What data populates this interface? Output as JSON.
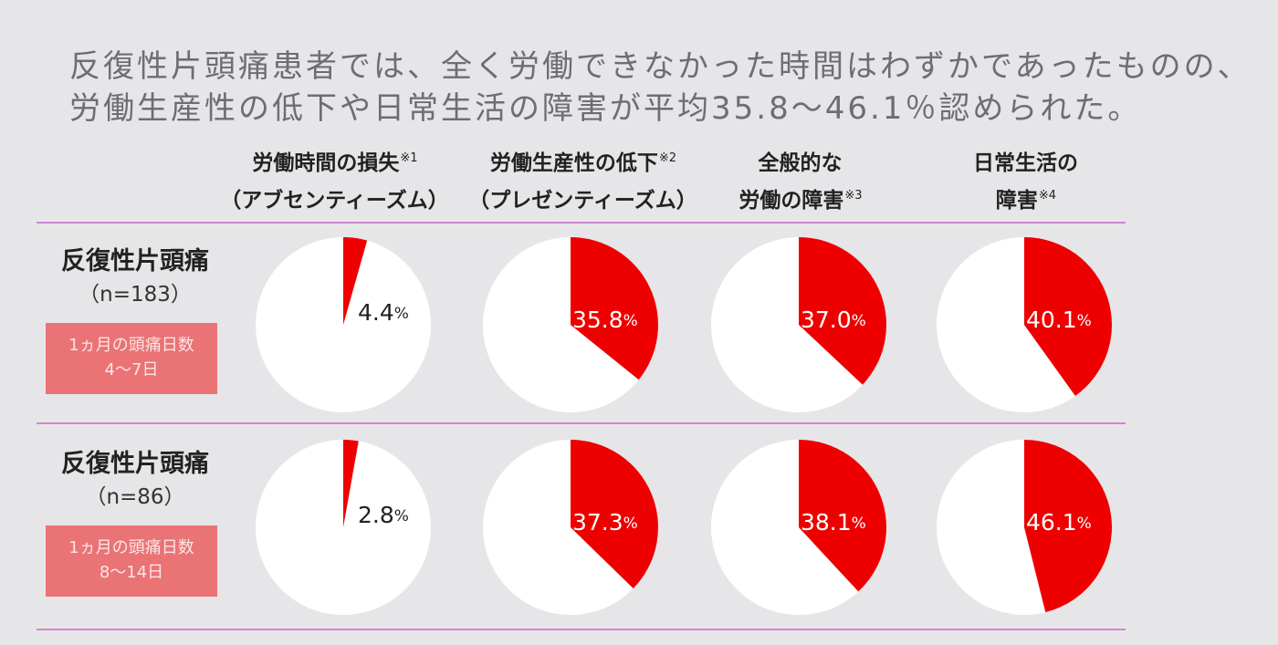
{
  "headline": {
    "line1": "反復性片頭痛患者では、全く労働できなかった時間はわずかであったものの、",
    "line2": "労働生産性の低下や日常生活の障害が平均35.8〜46.1％認められた。"
  },
  "columns": [
    {
      "line1": "労働時間の損失",
      "note1": "※1",
      "line2": "（アブセンティーズム）",
      "note2": ""
    },
    {
      "line1": "労働生産性の低下",
      "note1": "※2",
      "line2": "（プレゼンティーズム）",
      "note2": ""
    },
    {
      "line1": "全般的な",
      "note1": "",
      "line2": "労働の障害",
      "note2": "※3"
    },
    {
      "line1": "日常生活の",
      "note1": "",
      "line2": "障害",
      "note2": "※4"
    }
  ],
  "rows": [
    {
      "title": "反復性片頭痛",
      "n": "（n=183）",
      "badge_line1": "1ヵ月の頭痛日数",
      "badge_line2": "4〜7日"
    },
    {
      "title": "反復性片頭痛",
      "n": "（n=86）",
      "badge_line1": "1ヵ月の頭痛日数",
      "badge_line2": "8〜14日"
    }
  ],
  "colors": {
    "background": "#e6e6e9",
    "slice": "#ee0000",
    "pie_base": "#ffffff",
    "divider": "#cf86cf",
    "badge": "#ea7376",
    "headline": "#6d6d73"
  },
  "chart_data": {
    "type": "pie",
    "unit": "%",
    "categories": [
      "労働時間の損失（アブセンティーズム）",
      "労働生産性の低下（プレゼンティーズム）",
      "全般的な労働の障害",
      "日常生活の障害"
    ],
    "series": [
      {
        "name": "反復性片頭痛（n=183）",
        "values": [
          4.4,
          35.8,
          37.0,
          40.1
        ],
        "labels": [
          "4.4",
          "35.8",
          "37.0",
          "40.1"
        ]
      },
      {
        "name": "反復性片頭痛（n=86）",
        "values": [
          2.8,
          37.3,
          38.1,
          46.1
        ],
        "labels": [
          "2.8",
          "37.3",
          "38.1",
          "46.1"
        ]
      }
    ]
  }
}
